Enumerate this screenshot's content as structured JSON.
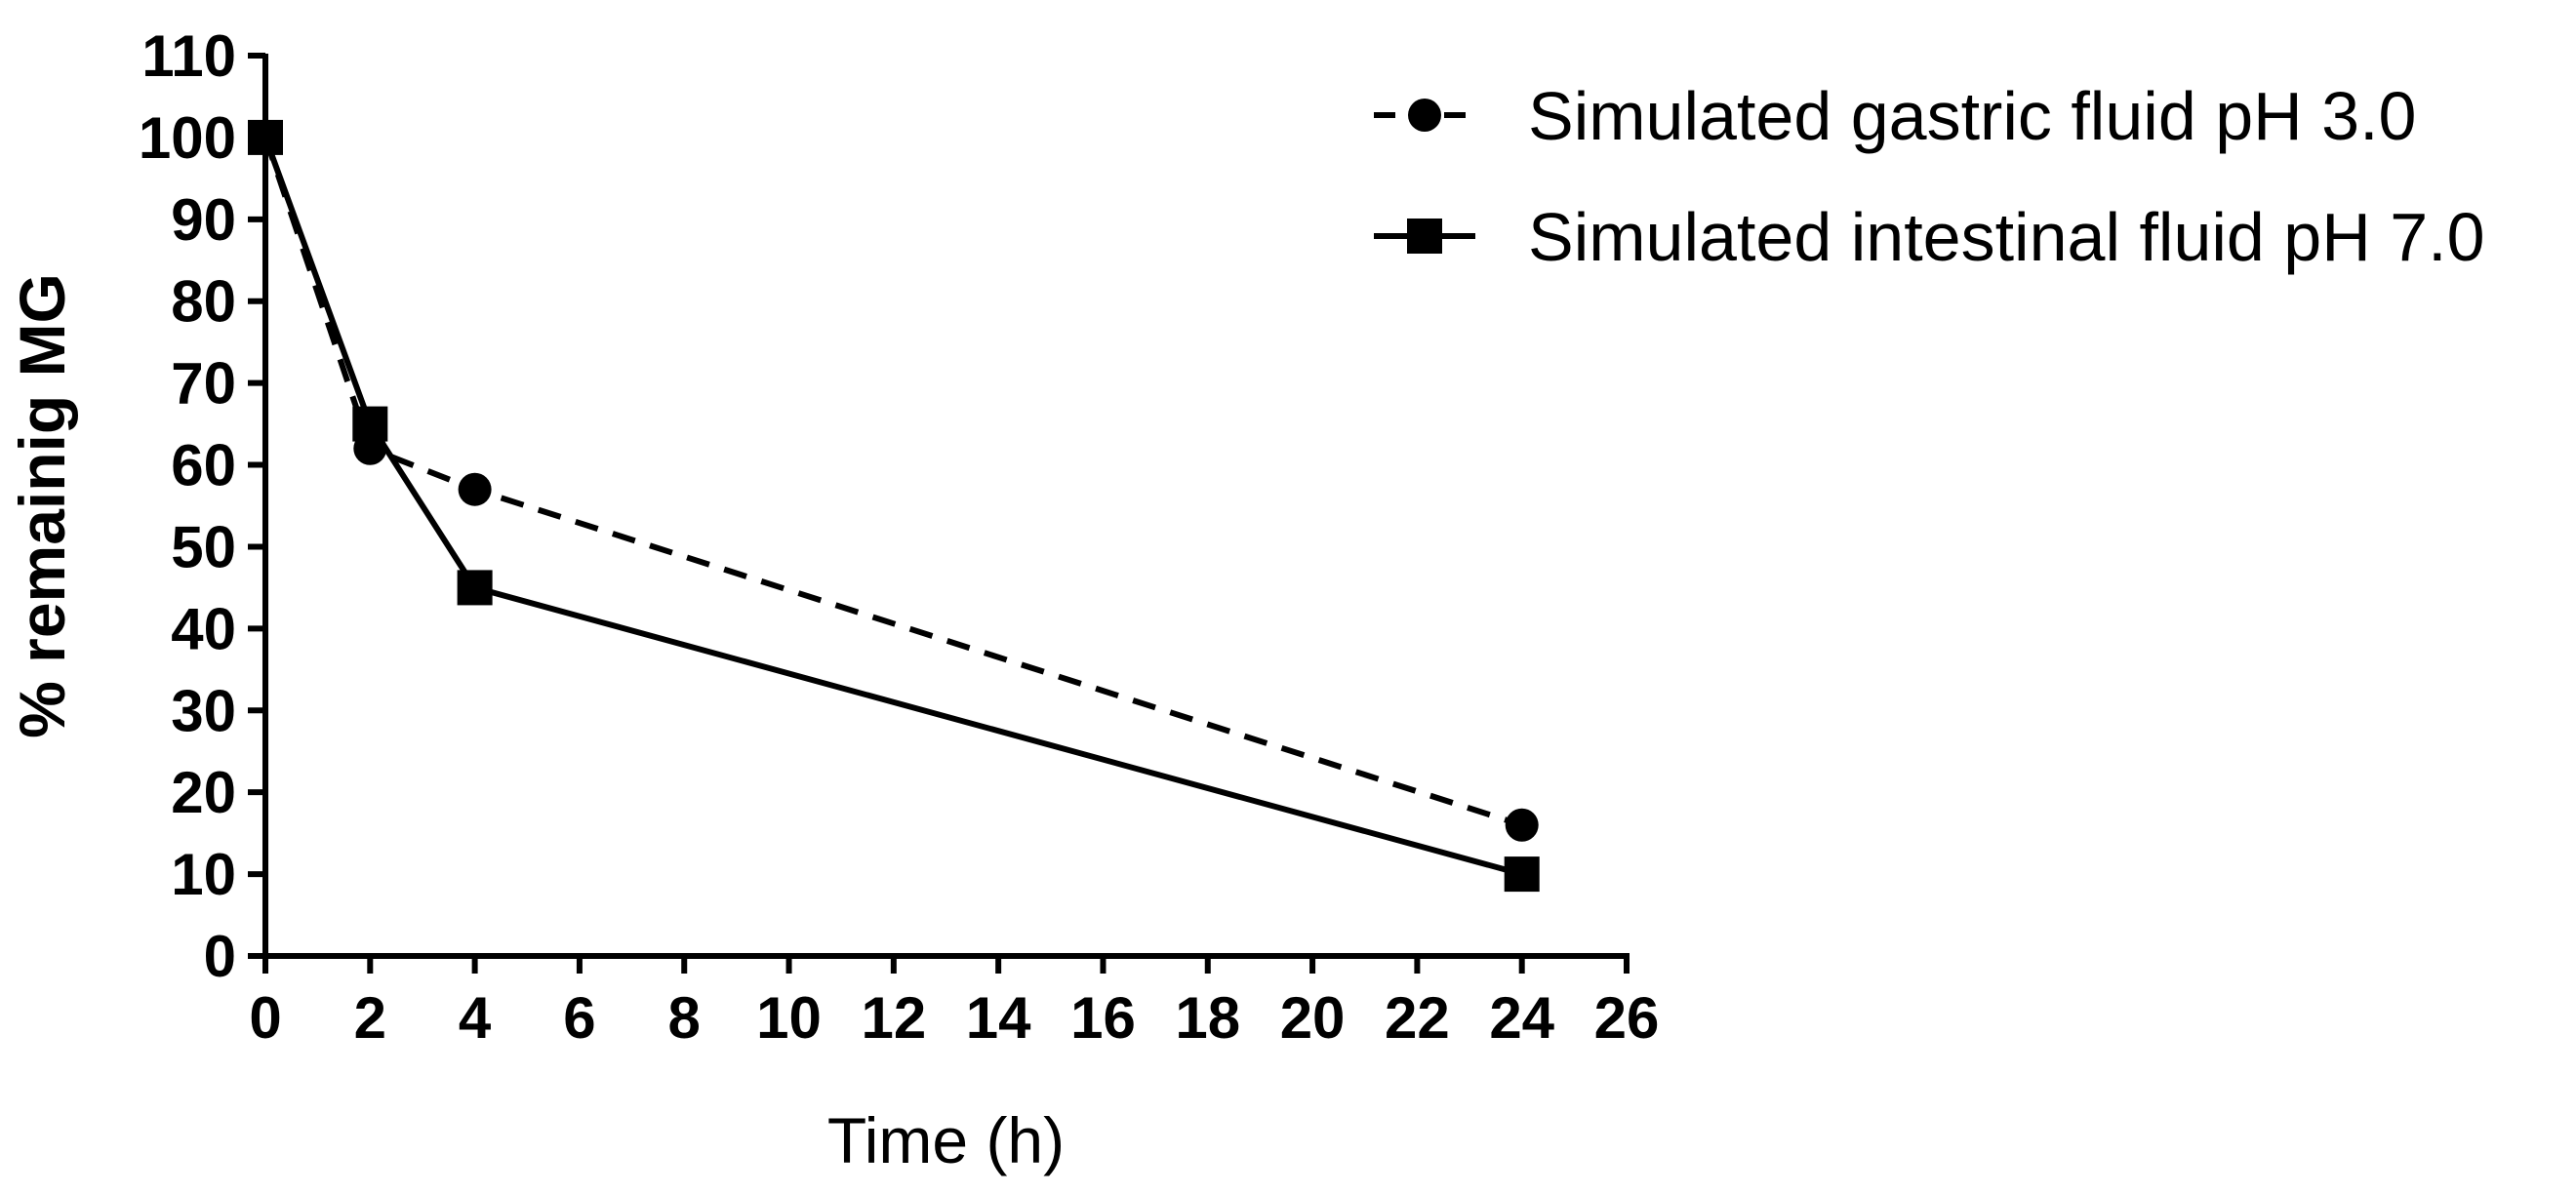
{
  "chart_data": {
    "type": "line",
    "title": "",
    "xlabel": "Time (h)",
    "ylabel": "% remainig MG",
    "xlim": [
      0,
      26
    ],
    "ylim": [
      0,
      110
    ],
    "xticks": [
      0,
      2,
      4,
      6,
      8,
      10,
      12,
      14,
      16,
      18,
      20,
      22,
      24,
      26
    ],
    "yticks": [
      0,
      10,
      20,
      30,
      40,
      50,
      60,
      70,
      80,
      90,
      100,
      110
    ],
    "grid": false,
    "legend_position": "top-right",
    "series": [
      {
        "name": "Simulated gastric fluid pH 3.0",
        "line_style": "dashed",
        "marker": "circle",
        "color": "#000000",
        "x": [
          0,
          2,
          4,
          24
        ],
        "values": [
          100,
          62,
          57,
          16
        ]
      },
      {
        "name": "Simulated intestinal fluid pH 7.0",
        "line_style": "solid",
        "marker": "square",
        "color": "#000000",
        "x": [
          0,
          2,
          4,
          24
        ],
        "values": [
          100,
          65,
          45,
          10
        ]
      }
    ]
  }
}
